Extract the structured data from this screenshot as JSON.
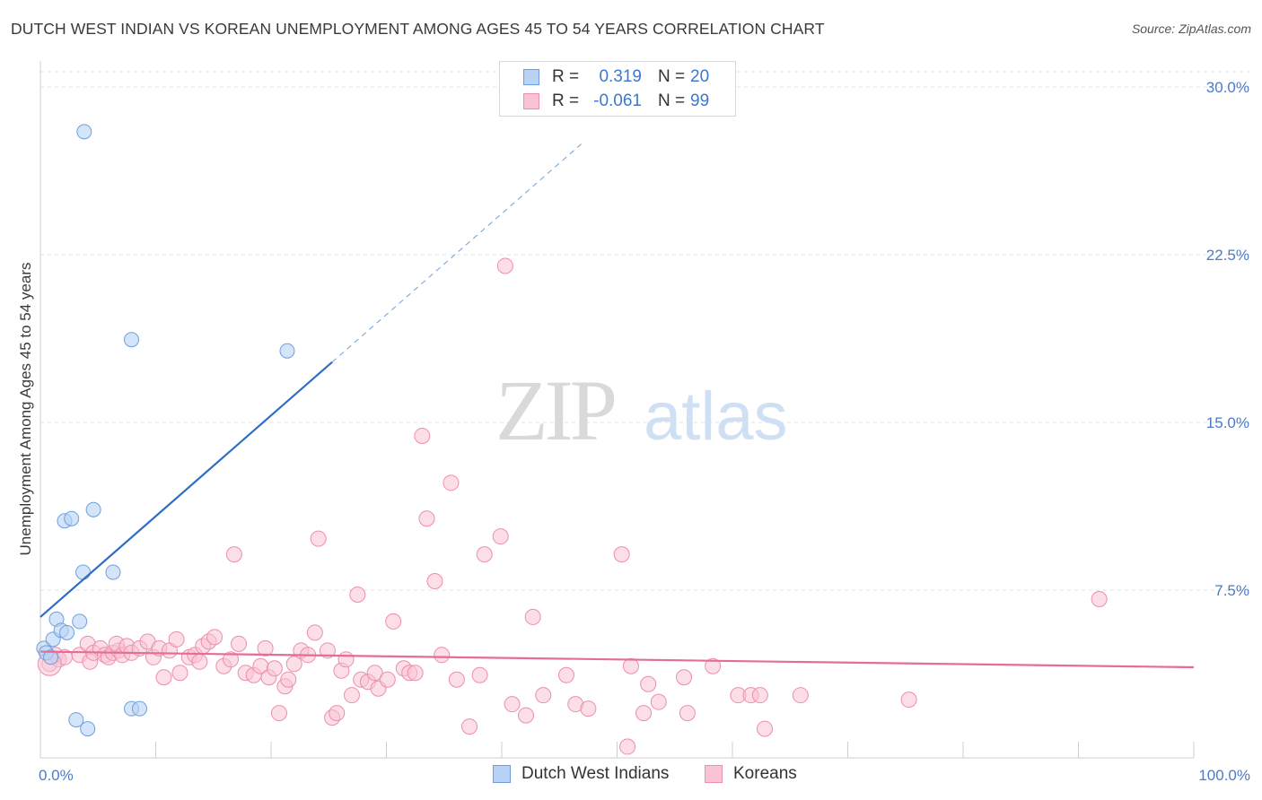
{
  "colors": {
    "blue_fill": "#b8d3f5",
    "blue_stroke": "#6f9fdb",
    "blue_line": "#2f6ec6",
    "pink_fill": "#f9c3d3",
    "pink_stroke": "#eb8fab",
    "pink_line": "#e36d94",
    "grid": "#e2e2e2",
    "tick_text": "#4a7cc7"
  },
  "header": {
    "title": "DUTCH WEST INDIAN VS KOREAN UNEMPLOYMENT AMONG AGES 45 TO 54 YEARS CORRELATION CHART",
    "source": "Source: ZipAtlas.com"
  },
  "legend": {
    "rows": [
      {
        "r_label": "R =",
        "r_value": "0.319",
        "n_label": "N =",
        "n_value": "20"
      },
      {
        "r_label": "R =",
        "r_value": "-0.061",
        "n_label": "N =",
        "n_value": "99"
      }
    ]
  },
  "watermark": {
    "zip": "ZIP",
    "atlas": "atlas"
  },
  "chart_data": {
    "type": "scatter",
    "title": "DUTCH WEST INDIAN VS KOREAN UNEMPLOYMENT AMONG AGES 45 TO 54 YEARS CORRELATION CHART",
    "xlabel": "",
    "ylabel": "Unemployment Among Ages 45 to 54 years",
    "xlim": [
      0,
      100
    ],
    "ylim": [
      0,
      30
    ],
    "y_ticks": [
      7.5,
      15.0,
      22.5,
      30.0
    ],
    "y_tick_labels": [
      "7.5%",
      "15.0%",
      "22.5%",
      "30.0%"
    ],
    "x_tick_labels": [
      "0.0%",
      "100.0%"
    ],
    "grid": true,
    "legend_position": "top-center",
    "series": [
      {
        "name": "Dutch West Indians",
        "r": 0.319,
        "n": 20,
        "points": [
          [
            0.3,
            4.9
          ],
          [
            0.5,
            4.7
          ],
          [
            0.9,
            4.5
          ],
          [
            1.1,
            5.3
          ],
          [
            1.4,
            6.2
          ],
          [
            1.8,
            5.7
          ],
          [
            2.3,
            5.6
          ],
          [
            2.1,
            10.6
          ],
          [
            2.7,
            10.7
          ],
          [
            3.4,
            6.1
          ],
          [
            3.7,
            8.3
          ],
          [
            4.6,
            11.1
          ],
          [
            6.3,
            8.3
          ],
          [
            7.9,
            18.7
          ],
          [
            3.8,
            28.0
          ],
          [
            3.1,
            1.7
          ],
          [
            4.1,
            1.3
          ],
          [
            7.9,
            2.2
          ],
          [
            8.6,
            2.2
          ],
          [
            21.4,
            18.2
          ]
        ],
        "trend": {
          "x0": 0,
          "y0": 6.3,
          "x1": 25.3,
          "y1": 17.7,
          "dash_to_x": 47,
          "dash_to_y": 27.5
        }
      },
      {
        "name": "Koreans",
        "r": -0.061,
        "n": 99,
        "points": [
          [
            0.8,
            4.2
          ],
          [
            1.3,
            4.6
          ],
          [
            1.6,
            4.4
          ],
          [
            2.1,
            4.5
          ],
          [
            3.4,
            4.6
          ],
          [
            4.1,
            5.1
          ],
          [
            4.3,
            4.3
          ],
          [
            4.6,
            4.7
          ],
          [
            5.2,
            4.9
          ],
          [
            5.6,
            4.6
          ],
          [
            5.9,
            4.5
          ],
          [
            6.3,
            4.7
          ],
          [
            6.8,
            4.8
          ],
          [
            6.6,
            5.1
          ],
          [
            7.1,
            4.6
          ],
          [
            7.5,
            5.0
          ],
          [
            7.9,
            4.7
          ],
          [
            8.6,
            4.9
          ],
          [
            9.3,
            5.2
          ],
          [
            9.8,
            4.5
          ],
          [
            10.3,
            4.9
          ],
          [
            10.7,
            3.6
          ],
          [
            11.2,
            4.8
          ],
          [
            11.8,
            5.3
          ],
          [
            12.1,
            3.8
          ],
          [
            12.9,
            4.5
          ],
          [
            13.4,
            4.6
          ],
          [
            13.8,
            4.3
          ],
          [
            14.1,
            5.0
          ],
          [
            14.6,
            5.2
          ],
          [
            15.1,
            5.4
          ],
          [
            15.9,
            4.1
          ],
          [
            16.5,
            4.4
          ],
          [
            16.8,
            9.1
          ],
          [
            17.2,
            5.1
          ],
          [
            17.8,
            3.8
          ],
          [
            18.5,
            3.7
          ],
          [
            19.1,
            4.1
          ],
          [
            19.5,
            4.9
          ],
          [
            19.8,
            3.6
          ],
          [
            20.3,
            4.0
          ],
          [
            20.7,
            2.0
          ],
          [
            21.2,
            3.2
          ],
          [
            21.5,
            3.5
          ],
          [
            22.0,
            4.2
          ],
          [
            22.6,
            4.8
          ],
          [
            23.2,
            4.6
          ],
          [
            23.8,
            5.6
          ],
          [
            24.1,
            9.8
          ],
          [
            24.9,
            4.8
          ],
          [
            25.3,
            1.8
          ],
          [
            25.7,
            2.0
          ],
          [
            26.1,
            3.9
          ],
          [
            26.5,
            4.4
          ],
          [
            27.0,
            2.8
          ],
          [
            27.5,
            7.3
          ],
          [
            27.8,
            3.5
          ],
          [
            28.4,
            3.4
          ],
          [
            29.0,
            3.8
          ],
          [
            29.3,
            3.1
          ],
          [
            30.1,
            3.5
          ],
          [
            30.6,
            6.1
          ],
          [
            31.5,
            4.0
          ],
          [
            32.0,
            3.8
          ],
          [
            32.5,
            3.8
          ],
          [
            33.1,
            14.4
          ],
          [
            33.5,
            10.7
          ],
          [
            34.2,
            7.9
          ],
          [
            34.8,
            4.6
          ],
          [
            35.6,
            12.3
          ],
          [
            36.1,
            3.5
          ],
          [
            37.2,
            1.4
          ],
          [
            38.1,
            3.7
          ],
          [
            38.5,
            9.1
          ],
          [
            39.9,
            9.9
          ],
          [
            40.3,
            22.0
          ],
          [
            40.9,
            2.4
          ],
          [
            42.1,
            1.9
          ],
          [
            42.7,
            6.3
          ],
          [
            43.6,
            2.8
          ],
          [
            45.6,
            3.7
          ],
          [
            46.4,
            2.4
          ],
          [
            47.5,
            2.2
          ],
          [
            50.4,
            9.1
          ],
          [
            50.9,
            0.5
          ],
          [
            51.2,
            4.1
          ],
          [
            52.3,
            2.0
          ],
          [
            52.7,
            3.3
          ],
          [
            53.6,
            2.5
          ],
          [
            55.8,
            3.6
          ],
          [
            56.1,
            2.0
          ],
          [
            58.3,
            4.1
          ],
          [
            60.5,
            2.8
          ],
          [
            61.6,
            2.8
          ],
          [
            62.4,
            2.8
          ],
          [
            62.8,
            1.3
          ],
          [
            65.9,
            2.8
          ],
          [
            75.3,
            2.6
          ],
          [
            91.8,
            7.1
          ]
        ],
        "trend": {
          "x0": 0,
          "y0": 4.75,
          "x1": 100,
          "y1": 4.05
        }
      }
    ]
  }
}
